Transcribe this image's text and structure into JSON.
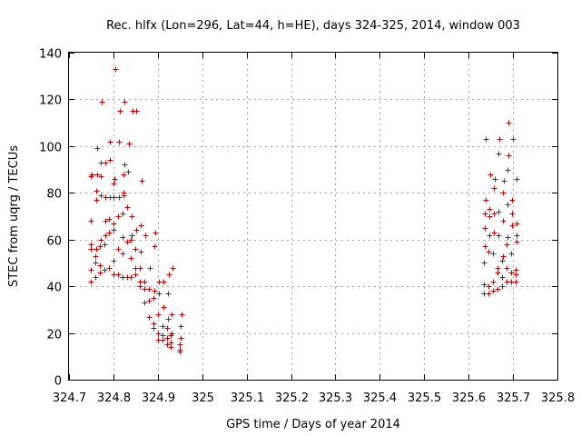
{
  "chart_data": {
    "type": "scatter",
    "title": "Rec. hlfx (Lon=296, Lat=44, h=HE), days 324-325, 2014, window 003",
    "xlabel": "GPS time / Days of year 2014",
    "ylabel": "STEC from uqrg / TECUs",
    "xlim": [
      324.7,
      325.8
    ],
    "ylim": [
      0,
      140
    ],
    "x_ticks": [
      "324.7",
      "324.8",
      "324.9",
      "325",
      "325.1",
      "325.2",
      "325.3",
      "325.4",
      "325.5",
      "325.6",
      "325.7",
      "325.8"
    ],
    "y_ticks": [
      "0",
      "20",
      "40",
      "60",
      "80",
      "100",
      "120",
      "140"
    ],
    "grid": true,
    "marker": "+",
    "color": "#cc0000",
    "series": [
      {
        "points": [
          [
            324.75,
            42
          ],
          [
            324.75,
            47
          ],
          [
            324.75,
            56
          ],
          [
            324.75,
            58
          ],
          [
            324.75,
            68
          ],
          [
            324.75,
            87
          ],
          [
            324.752,
            88
          ],
          [
            324.76,
            44
          ],
          [
            324.76,
            50
          ],
          [
            324.76,
            53
          ],
          [
            324.762,
            56
          ],
          [
            324.762,
            77
          ],
          [
            324.762,
            81
          ],
          [
            324.764,
            88
          ],
          [
            324.764,
            99
          ],
          [
            324.77,
            46
          ],
          [
            324.77,
            49
          ],
          [
            324.77,
            57
          ],
          [
            324.772,
            60
          ],
          [
            324.772,
            79
          ],
          [
            324.772,
            87
          ],
          [
            324.772,
            93
          ],
          [
            324.774,
            119
          ],
          [
            324.78,
            47
          ],
          [
            324.78,
            58
          ],
          [
            324.782,
            62
          ],
          [
            324.782,
            68
          ],
          [
            324.782,
            78
          ],
          [
            324.782,
            93
          ],
          [
            324.79,
            48
          ],
          [
            324.79,
            63
          ],
          [
            324.79,
            69
          ],
          [
            324.792,
            78
          ],
          [
            324.792,
            94
          ],
          [
            324.792,
            102
          ],
          [
            324.8,
            45
          ],
          [
            324.8,
            51
          ],
          [
            324.8,
            64
          ],
          [
            324.8,
            67
          ],
          [
            324.8,
            78
          ],
          [
            324.8,
            84
          ],
          [
            324.802,
            86
          ],
          [
            324.804,
            133
          ],
          [
            324.81,
            45
          ],
          [
            324.81,
            56
          ],
          [
            324.81,
            70
          ],
          [
            324.812,
            78
          ],
          [
            324.812,
            102
          ],
          [
            324.814,
            115
          ],
          [
            324.82,
            44
          ],
          [
            324.82,
            54
          ],
          [
            324.82,
            61
          ],
          [
            324.82,
            71
          ],
          [
            324.822,
            79
          ],
          [
            324.822,
            80
          ],
          [
            324.822,
            88
          ],
          [
            324.824,
            92
          ],
          [
            324.824,
            119
          ],
          [
            324.83,
            44
          ],
          [
            324.83,
            59
          ],
          [
            324.83,
            74
          ],
          [
            324.832,
            89
          ],
          [
            324.834,
            101
          ],
          [
            324.84,
            44
          ],
          [
            324.84,
            52
          ],
          [
            324.84,
            60
          ],
          [
            324.842,
            62
          ],
          [
            324.842,
            70
          ],
          [
            324.844,
            115
          ],
          [
            324.85,
            45
          ],
          [
            324.85,
            48
          ],
          [
            324.85,
            56
          ],
          [
            324.852,
            64
          ],
          [
            324.852,
            115
          ],
          [
            324.86,
            40
          ],
          [
            324.86,
            42
          ],
          [
            324.86,
            48
          ],
          [
            324.862,
            55
          ],
          [
            324.862,
            66
          ],
          [
            324.864,
            85
          ],
          [
            324.87,
            33
          ],
          [
            324.87,
            39
          ],
          [
            324.87,
            42
          ],
          [
            324.872,
            62
          ],
          [
            324.88,
            27
          ],
          [
            324.88,
            34
          ],
          [
            324.88,
            39
          ],
          [
            324.882,
            48
          ],
          [
            324.89,
            22
          ],
          [
            324.89,
            24
          ],
          [
            324.89,
            35
          ],
          [
            324.892,
            38
          ],
          [
            324.892,
            57
          ],
          [
            324.894,
            63
          ],
          [
            324.9,
            17
          ],
          [
            324.9,
            20
          ],
          [
            324.9,
            28
          ],
          [
            324.902,
            37
          ],
          [
            324.902,
            42
          ],
          [
            324.91,
            17
          ],
          [
            324.91,
            19
          ],
          [
            324.91,
            23
          ],
          [
            324.912,
            31
          ],
          [
            324.912,
            42
          ],
          [
            324.92,
            15
          ],
          [
            324.92,
            18
          ],
          [
            324.92,
            22
          ],
          [
            324.922,
            26
          ],
          [
            324.922,
            37
          ],
          [
            324.924,
            45
          ],
          [
            324.93,
            14
          ],
          [
            324.93,
            16
          ],
          [
            324.93,
            19
          ],
          [
            324.932,
            20
          ],
          [
            324.932,
            28
          ],
          [
            324.934,
            48
          ],
          [
            324.95,
            12
          ],
          [
            324.95,
            13
          ],
          [
            324.95,
            15
          ],
          [
            324.952,
            18
          ],
          [
            324.952,
            23
          ],
          [
            324.954,
            28
          ],
          [
            325.635,
            37
          ],
          [
            325.635,
            41
          ],
          [
            325.635,
            50
          ],
          [
            325.637,
            57
          ],
          [
            325.637,
            65
          ],
          [
            325.637,
            71
          ],
          [
            325.639,
            77
          ],
          [
            325.639,
            103
          ],
          [
            325.645,
            37
          ],
          [
            325.645,
            40
          ],
          [
            325.645,
            55
          ],
          [
            325.647,
            62
          ],
          [
            325.647,
            70
          ],
          [
            325.647,
            73
          ],
          [
            325.649,
            88
          ],
          [
            325.655,
            38
          ],
          [
            325.655,
            42
          ],
          [
            325.655,
            54
          ],
          [
            325.657,
            63
          ],
          [
            325.657,
            71
          ],
          [
            325.657,
            82
          ],
          [
            325.659,
            86
          ],
          [
            325.665,
            39
          ],
          [
            325.665,
            46
          ],
          [
            325.665,
            48
          ],
          [
            325.667,
            62
          ],
          [
            325.667,
            72
          ],
          [
            325.667,
            97
          ],
          [
            325.669,
            103
          ],
          [
            325.675,
            40
          ],
          [
            325.675,
            44
          ],
          [
            325.675,
            51
          ],
          [
            325.677,
            53
          ],
          [
            325.677,
            68
          ],
          [
            325.677,
            80
          ],
          [
            325.679,
            85
          ],
          [
            325.685,
            42
          ],
          [
            325.685,
            48
          ],
          [
            325.685,
            58
          ],
          [
            325.687,
            61
          ],
          [
            325.687,
            75
          ],
          [
            325.687,
            90
          ],
          [
            325.689,
            96
          ],
          [
            325.689,
            110
          ],
          [
            325.695,
            42
          ],
          [
            325.695,
            46
          ],
          [
            325.695,
            54
          ],
          [
            325.697,
            66
          ],
          [
            325.697,
            71
          ],
          [
            325.697,
            77
          ],
          [
            325.699,
            103
          ],
          [
            325.705,
            42
          ],
          [
            325.705,
            45
          ],
          [
            325.705,
            47
          ],
          [
            325.707,
            59
          ],
          [
            325.707,
            62
          ],
          [
            325.707,
            67
          ],
          [
            325.709,
            86
          ]
        ]
      }
    ]
  }
}
